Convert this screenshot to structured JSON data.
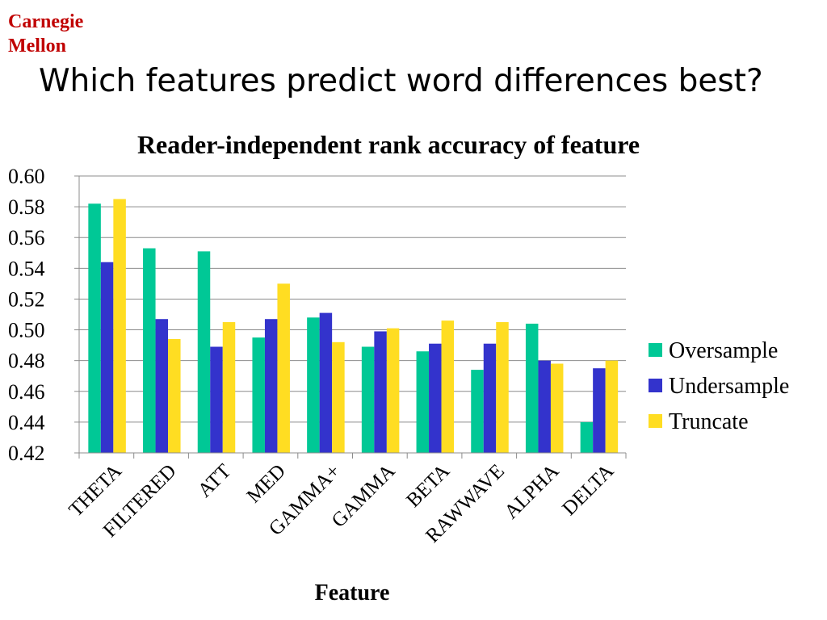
{
  "slide": {
    "logo_line1": "Carnegie",
    "logo_line2": "Mellon",
    "title": "Which features predict word differences best?"
  },
  "chart_data": {
    "type": "bar",
    "title": "Reader-independent rank accuracy of feature",
    "xlabel": "Feature",
    "ylabel": "",
    "ylim": [
      0.42,
      0.6
    ],
    "yticks": [
      "0.60",
      "0.58",
      "0.56",
      "0.54",
      "0.52",
      "0.50",
      "0.48",
      "0.46",
      "0.44",
      "0.42"
    ],
    "grid": true,
    "legend_position": "right",
    "categories": [
      "THETA",
      "FILTERED",
      "ATT",
      "MED",
      "GAMMA+",
      "GAMMA",
      "BETA",
      "RAWWAVE",
      "ALPHA",
      "DELTA"
    ],
    "series": [
      {
        "name": "Oversample",
        "color": "#00c896",
        "values": [
          0.582,
          0.553,
          0.551,
          0.495,
          0.508,
          0.489,
          0.486,
          0.474,
          0.504,
          0.44
        ]
      },
      {
        "name": "Undersample",
        "color": "#3333cc",
        "values": [
          0.544,
          0.507,
          0.489,
          0.507,
          0.511,
          0.499,
          0.491,
          0.491,
          0.48,
          0.475
        ]
      },
      {
        "name": "Truncate",
        "color": "#ffdd22",
        "values": [
          0.585,
          0.494,
          0.505,
          0.53,
          0.492,
          0.501,
          0.506,
          0.505,
          0.478,
          0.48
        ]
      }
    ]
  }
}
